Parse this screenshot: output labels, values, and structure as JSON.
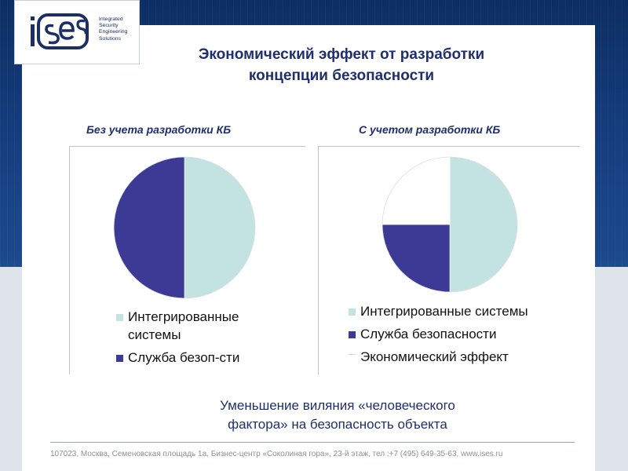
{
  "logo": {
    "mark_text": "iSES",
    "lines": [
      "Integrated",
      "Security",
      "Engineering",
      "Solutions"
    ]
  },
  "title": {
    "line1": "Экономический эффект от разработки",
    "line2": "концепции безопасности"
  },
  "chart_data": [
    {
      "type": "pie",
      "title": "Без учета разработки КБ",
      "categories": [
        "Интегрированные системы",
        "Служба безоп-сти"
      ],
      "values": [
        50,
        50
      ],
      "colors": [
        "#c3e3e3",
        "#3c3a94"
      ],
      "legend_position": "bottom"
    },
    {
      "type": "pie",
      "title": "С учетом разработки КБ",
      "categories": [
        "Интегрированные системы",
        "Служба безопасности",
        "Экономический эффект"
      ],
      "values": [
        50,
        25,
        25
      ],
      "colors": [
        "#c3e3e3",
        "#3c3a94",
        "#ffffff"
      ],
      "legend_position": "bottom"
    }
  ],
  "legend_left": {
    "item1_line1": "Интегрированные",
    "item1_line2": "системы",
    "item2": "Служба безоп-сти"
  },
  "bottom_text": {
    "line1": "Уменьшение виляния «человеческого",
    "line2": "фактора» на безопасность объекта"
  },
  "footer": "107023, Москва, Семеновская площадь 1а, Бизнес-центр «Соколиная гора», 23-й этаж, тел :+7 (495) 649-35-63, www.ises.ru"
}
